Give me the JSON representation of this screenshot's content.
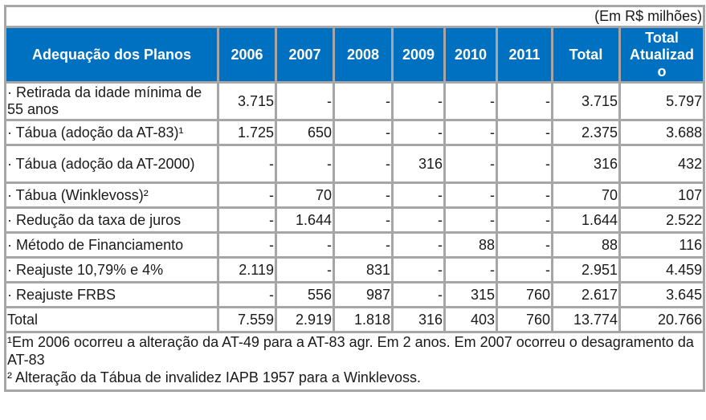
{
  "unit_note": "(Em R$ milhões)",
  "header": {
    "label": "Adequação dos Planos",
    "columns": [
      "2006",
      "2007",
      "2008",
      "2009",
      "2010",
      "2011",
      "Total",
      "Total Atualizad o"
    ]
  },
  "rows": [
    {
      "label": "· Retirada da idade mínima de 55 anos",
      "values": [
        "3.715",
        "-",
        "-",
        "-",
        "-",
        "-",
        "3.715",
        "5.797"
      ]
    },
    {
      "label": "· Tábua (adoção da AT-83)¹",
      "values": [
        "1.725",
        "650",
        "-",
        "-",
        "-",
        "-",
        "2.375",
        "3.688"
      ]
    },
    {
      "label": "· Tábua (adoção da AT-2000)",
      "values": [
        "-",
        "-",
        "-",
        "316",
        "-",
        "-",
        "316",
        "432"
      ]
    },
    {
      "label": "· Tábua (Winklevoss)²",
      "values": [
        "-",
        "70",
        "-",
        "-",
        "-",
        "-",
        "70",
        "107"
      ]
    },
    {
      "label": "· Redução da taxa de juros",
      "values": [
        "-",
        "1.644",
        "-",
        "-",
        "-",
        "-",
        "1.644",
        "2.522"
      ]
    },
    {
      "label": "· Método de Financiamento",
      "values": [
        "-",
        "-",
        "-",
        "-",
        "88",
        "-",
        "88",
        "116"
      ]
    },
    {
      "label": "· Reajuste 10,79% e 4%",
      "values": [
        "2.119",
        "-",
        "831",
        "-",
        "-",
        "-",
        "2.951",
        "4.459"
      ]
    },
    {
      "label": "· Reajuste FRBS",
      "values": [
        "-",
        "556",
        "987",
        "-",
        "315",
        "760",
        "2.617",
        "3.645"
      ]
    }
  ],
  "total_row": {
    "label": "Total",
    "values": [
      "7.559",
      "2.919",
      "1.818",
      "316",
      "403",
      "760",
      "13.774",
      "20.766"
    ]
  },
  "footnotes": [
    "¹Em 2006 ocorreu a alteração da AT-49 para a AT-83 agr. Em 2 anos. Em 2007 ocorreu o desagramento da AT-83",
    "² Alteração da Tábua de invalidez IAPB 1957 para a Winklevoss."
  ],
  "colors": {
    "header_bg": "#0070c0",
    "header_text": "#ffffff",
    "border": "#a6a6a6"
  }
}
